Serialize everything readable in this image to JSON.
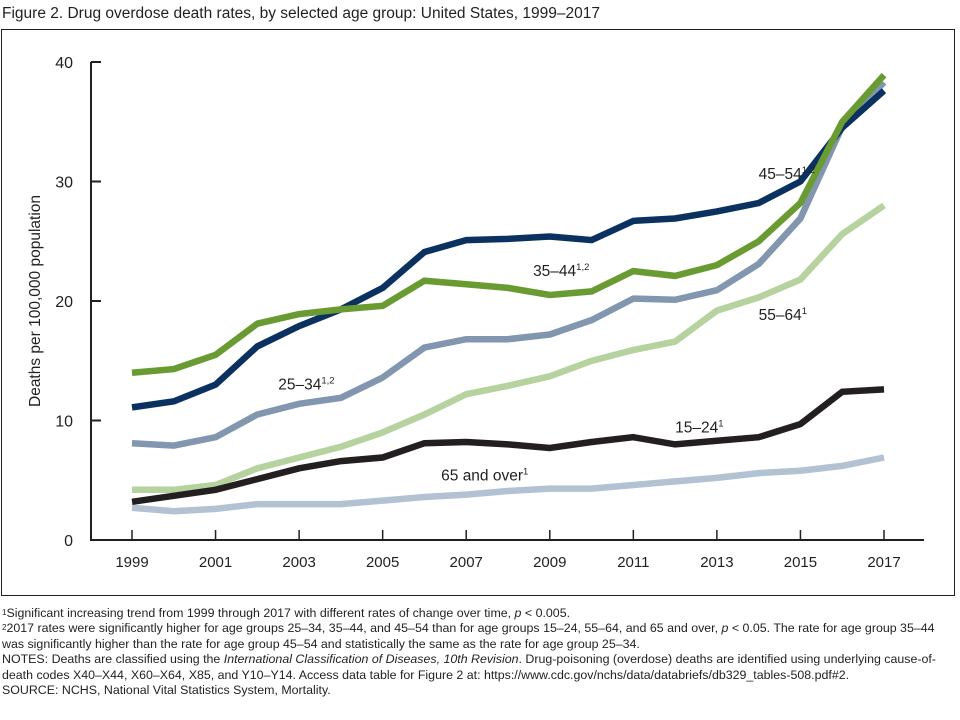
{
  "figure": {
    "title": "Figure 2. Drug overdose death rates, by selected age group: United States, 1999–2017"
  },
  "chart_data": {
    "type": "line",
    "title": "Drug overdose death rates, by selected age group: United States, 1999–2017",
    "xlabel": "",
    "ylabel": "Deaths per 100,000 population",
    "ylim": [
      0,
      40
    ],
    "xlim": [
      1999,
      2017
    ],
    "grid": false,
    "legend": "inline labels",
    "y_ticks": [
      "0",
      "10",
      "20",
      "30",
      "40"
    ],
    "x_tick_labels": [
      "1999",
      "2001",
      "2003",
      "2005",
      "2007",
      "2009",
      "2011",
      "2013",
      "2015",
      "2017"
    ],
    "x": [
      1999,
      2000,
      2001,
      2002,
      2003,
      2004,
      2005,
      2006,
      2007,
      2008,
      2009,
      2010,
      2011,
      2012,
      2013,
      2014,
      2015,
      2016,
      2017
    ],
    "series": [
      {
        "name": "65 and over",
        "label": "65 and over",
        "sup": "1",
        "color": "#b3c2d3",
        "values": [
          2.7,
          2.4,
          2.6,
          3.0,
          3.0,
          3.0,
          3.3,
          3.6,
          3.8,
          4.1,
          4.3,
          4.3,
          4.6,
          4.9,
          5.2,
          5.6,
          5.8,
          6.2,
          6.9
        ]
      },
      {
        "name": "55–64",
        "label": "55–64",
        "sup": "1",
        "color": "#b5d29f",
        "values": [
          4.2,
          4.2,
          4.6,
          6.0,
          6.9,
          7.8,
          9.0,
          10.5,
          12.2,
          12.9,
          13.7,
          15.0,
          15.9,
          16.6,
          19.2,
          20.3,
          21.8,
          25.6,
          28.0
        ]
      },
      {
        "name": "15–24",
        "label": "15–24",
        "sup": "1",
        "color": "#231f20",
        "values": [
          3.2,
          3.7,
          4.2,
          5.1,
          6.0,
          6.6,
          6.9,
          8.1,
          8.2,
          8.0,
          7.7,
          8.2,
          8.6,
          8.0,
          8.3,
          8.6,
          9.7,
          12.4,
          12.6
        ]
      },
      {
        "name": "25–34",
        "label": "25–34",
        "sup": "1,2",
        "color": "#8296b0",
        "values": [
          8.1,
          7.9,
          8.6,
          10.5,
          11.4,
          11.9,
          13.6,
          16.1,
          16.8,
          16.8,
          17.2,
          18.4,
          20.2,
          20.1,
          20.9,
          23.1,
          26.9,
          34.6,
          38.3
        ]
      },
      {
        "name": "45–54",
        "label": "45–54",
        "sup": "1,2",
        "color": "#0b3161",
        "values": [
          11.1,
          11.6,
          13.0,
          16.2,
          17.9,
          19.3,
          21.1,
          24.1,
          25.1,
          25.2,
          25.4,
          25.1,
          26.7,
          26.9,
          27.5,
          28.2,
          30.0,
          34.5,
          37.6
        ]
      },
      {
        "name": "35–44",
        "label": "35–44",
        "sup": "1,2",
        "color": "#6a9b32",
        "values": [
          14.0,
          14.3,
          15.5,
          18.1,
          18.9,
          19.3,
          19.6,
          21.7,
          21.4,
          21.1,
          20.5,
          20.8,
          22.5,
          22.1,
          23.0,
          25.0,
          28.2,
          35.0,
          38.9
        ]
      }
    ],
    "annotations": [
      {
        "series": "45–54",
        "text": "45–54",
        "sup": "1,2"
      },
      {
        "series": "35–44",
        "text": "35–44",
        "sup": "1,2"
      },
      {
        "series": "25–34",
        "text": "25–34",
        "sup": "1,2"
      },
      {
        "series": "55–64",
        "text": "55–64",
        "sup": "1"
      },
      {
        "series": "15–24",
        "text": "15–24",
        "sup": "1"
      },
      {
        "series": "65 and over",
        "text": "65 and over",
        "sup": "1"
      }
    ]
  },
  "footnotes": {
    "fn1_marker": "1",
    "fn1_text": "Significant increasing trend from 1999 through 2017 with different rates of change over time, ",
    "fn1_p": "p",
    "fn1_end": " < 0.005.",
    "fn2_marker": "2",
    "fn2_text": "2017 rates were significantly higher for age groups 25–34, 35–44, and 45–54 than for age groups 15–24, 55–64, and 65 and over, ",
    "fn2_p": "p",
    "fn2_end": " < 0.05. The rate for age group 35–44 was significantly higher than the rate for age group 45–54 and statistically the same as the rate for age group 25–34.",
    "notes_prefix": "NOTES: Deaths are classified using the ",
    "notes_italic": "International Classification of Diseases, 10th Revision",
    "notes_rest": ". Drug-poisoning (overdose) deaths are identified using underlying cause-of-death codes X40–X44, X60–X64, X85, and Y10–Y14. Access data table for Figure 2 at: https://www.cdc.gov/nchs/data/databriefs/db329_tables-508.pdf#2.",
    "source": "SOURCE: NCHS, National Vital Statistics System, Mortality."
  }
}
